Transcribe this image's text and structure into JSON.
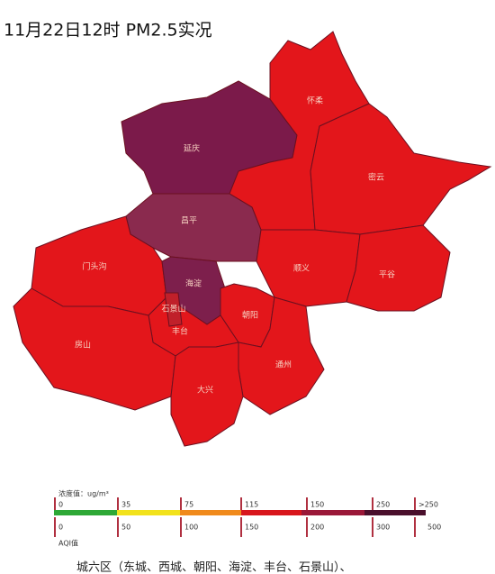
{
  "title": "11月22日12时 PM2.5实况",
  "districts": [
    {
      "name": "延庆",
      "color": "#7b1a4a"
    },
    {
      "name": "怀柔",
      "color": "#e3161b"
    },
    {
      "name": "密云",
      "color": "#e3161b"
    },
    {
      "name": "昌平",
      "color": "#8a2a4e"
    },
    {
      "name": "门头沟",
      "color": "#e3161b"
    },
    {
      "name": "海淀",
      "color": "#7d1f4c"
    },
    {
      "name": "顺义",
      "color": "#e3161b"
    },
    {
      "name": "平谷",
      "color": "#e3161b"
    },
    {
      "name": "朝阳",
      "color": "#e3161b"
    },
    {
      "name": "丰台",
      "color": "#e3161b"
    },
    {
      "name": "房山",
      "color": "#e3161b"
    },
    {
      "name": "通州",
      "color": "#e3161b"
    },
    {
      "name": "大兴",
      "color": "#e3161b"
    },
    {
      "name": "石景山",
      "color": "#c0202a"
    }
  ],
  "legend": {
    "concentration_label": "浓度值：ug/m³",
    "concentration_ticks": [
      "0",
      "35",
      "75",
      "115",
      "150",
      "250",
      ">250"
    ],
    "aqi_label": "AQI值",
    "aqi_ticks": [
      "0",
      "50",
      "100",
      "150",
      "200",
      "300",
      "500"
    ]
  },
  "footer": "城六区（东城、西城、朝阳、海淀、丰台、石景山）、"
}
